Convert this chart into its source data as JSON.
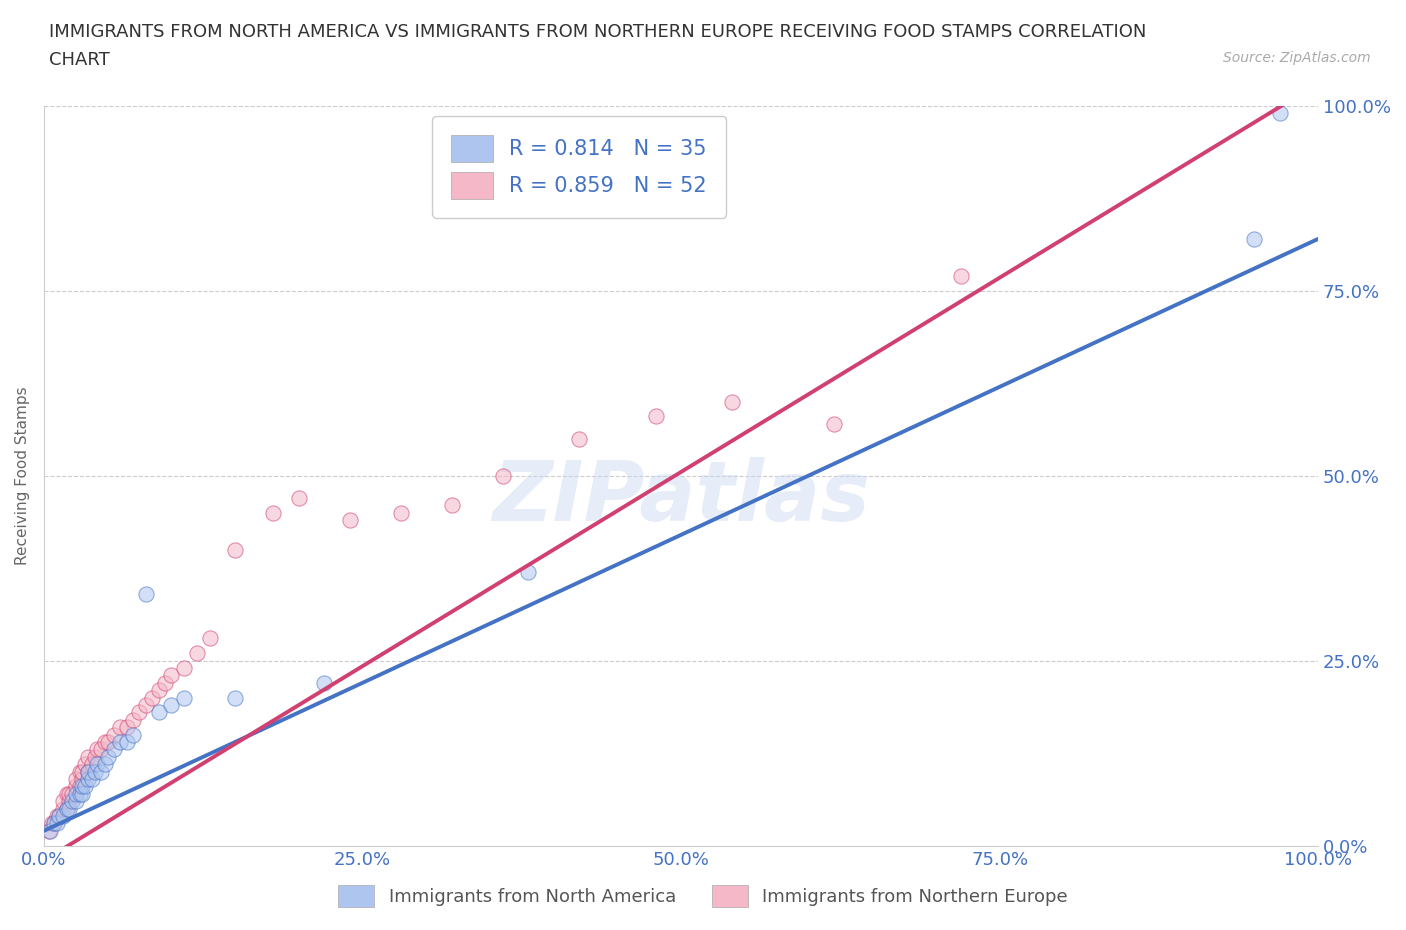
{
  "title_line1": "IMMIGRANTS FROM NORTH AMERICA VS IMMIGRANTS FROM NORTHERN EUROPE RECEIVING FOOD STAMPS CORRELATION",
  "title_line2": "CHART",
  "source_text": "Source: ZipAtlas.com",
  "ylabel": "Receiving Food Stamps",
  "watermark": "ZIPatlas",
  "legend_items": [
    {
      "label": "R = 0.814   N = 35",
      "color": "#aec6ef",
      "R": 0.814,
      "N": 35
    },
    {
      "label": "R = 0.859   N = 52",
      "color": "#f4b8c8",
      "R": 0.859,
      "N": 52
    }
  ],
  "bottom_legend": [
    {
      "label": "Immigrants from North America",
      "color": "#aec6ef"
    },
    {
      "label": "Immigrants from Northern Europe",
      "color": "#f4b8c8"
    }
  ],
  "xmin": 0.0,
  "xmax": 1.0,
  "ymin": 0.0,
  "ymax": 1.0,
  "xticks": [
    0.0,
    0.25,
    0.5,
    0.75,
    1.0
  ],
  "yticks": [
    0.0,
    0.25,
    0.5,
    0.75,
    1.0
  ],
  "xticklabels": [
    "0.0%",
    "25.0%",
    "50.0%",
    "75.0%",
    "100.0%"
  ],
  "yticklabels": [
    "0.0%",
    "25.0%",
    "50.0%",
    "75.0%",
    "100.0%"
  ],
  "title_color": "#333333",
  "title_fontsize": 13,
  "axis_label_color": "#666666",
  "tick_label_color": "#4472c4",
  "tick_label_fontsize": 13,
  "grid_color": "#cccccc",
  "grid_linestyle": "--",
  "background_color": "#ffffff",
  "series1_color": "#aec6ef",
  "series1_line_color": "#4472c4",
  "series2_color": "#f4b8c8",
  "series2_line_color": "#d04070",
  "diagonal_color": "#d08090",
  "diagonal_linestyle": "--",
  "na_line_intercept": 0.02,
  "na_line_slope": 0.8,
  "ne_line_intercept": -0.02,
  "ne_line_slope": 1.05,
  "north_america_x": [
    0.005,
    0.008,
    0.01,
    0.012,
    0.015,
    0.018,
    0.02,
    0.022,
    0.025,
    0.025,
    0.028,
    0.03,
    0.03,
    0.032,
    0.035,
    0.035,
    0.038,
    0.04,
    0.042,
    0.045,
    0.048,
    0.05,
    0.055,
    0.06,
    0.065,
    0.07,
    0.08,
    0.09,
    0.1,
    0.11,
    0.15,
    0.22,
    0.38,
    0.95,
    0.97
  ],
  "north_america_y": [
    0.02,
    0.03,
    0.03,
    0.04,
    0.04,
    0.05,
    0.05,
    0.06,
    0.06,
    0.07,
    0.07,
    0.07,
    0.08,
    0.08,
    0.09,
    0.1,
    0.09,
    0.1,
    0.11,
    0.1,
    0.11,
    0.12,
    0.13,
    0.14,
    0.14,
    0.15,
    0.34,
    0.18,
    0.19,
    0.2,
    0.2,
    0.22,
    0.37,
    0.82,
    0.99
  ],
  "northern_europe_x": [
    0.004,
    0.006,
    0.008,
    0.01,
    0.012,
    0.015,
    0.015,
    0.018,
    0.018,
    0.02,
    0.02,
    0.022,
    0.025,
    0.025,
    0.028,
    0.028,
    0.03,
    0.03,
    0.032,
    0.035,
    0.035,
    0.038,
    0.04,
    0.042,
    0.045,
    0.048,
    0.05,
    0.055,
    0.06,
    0.065,
    0.07,
    0.075,
    0.08,
    0.085,
    0.09,
    0.095,
    0.1,
    0.11,
    0.12,
    0.13,
    0.15,
    0.18,
    0.2,
    0.24,
    0.28,
    0.32,
    0.36,
    0.42,
    0.48,
    0.54,
    0.62,
    0.72
  ],
  "northern_europe_y": [
    0.02,
    0.03,
    0.03,
    0.04,
    0.04,
    0.05,
    0.06,
    0.05,
    0.07,
    0.06,
    0.07,
    0.07,
    0.08,
    0.09,
    0.08,
    0.1,
    0.09,
    0.1,
    0.11,
    0.1,
    0.12,
    0.11,
    0.12,
    0.13,
    0.13,
    0.14,
    0.14,
    0.15,
    0.16,
    0.16,
    0.17,
    0.18,
    0.19,
    0.2,
    0.21,
    0.22,
    0.23,
    0.24,
    0.26,
    0.28,
    0.4,
    0.45,
    0.47,
    0.44,
    0.45,
    0.46,
    0.5,
    0.55,
    0.58,
    0.6,
    0.57,
    0.77
  ],
  "marker_size": 120,
  "marker_alpha": 0.55,
  "line_width": 2.8
}
